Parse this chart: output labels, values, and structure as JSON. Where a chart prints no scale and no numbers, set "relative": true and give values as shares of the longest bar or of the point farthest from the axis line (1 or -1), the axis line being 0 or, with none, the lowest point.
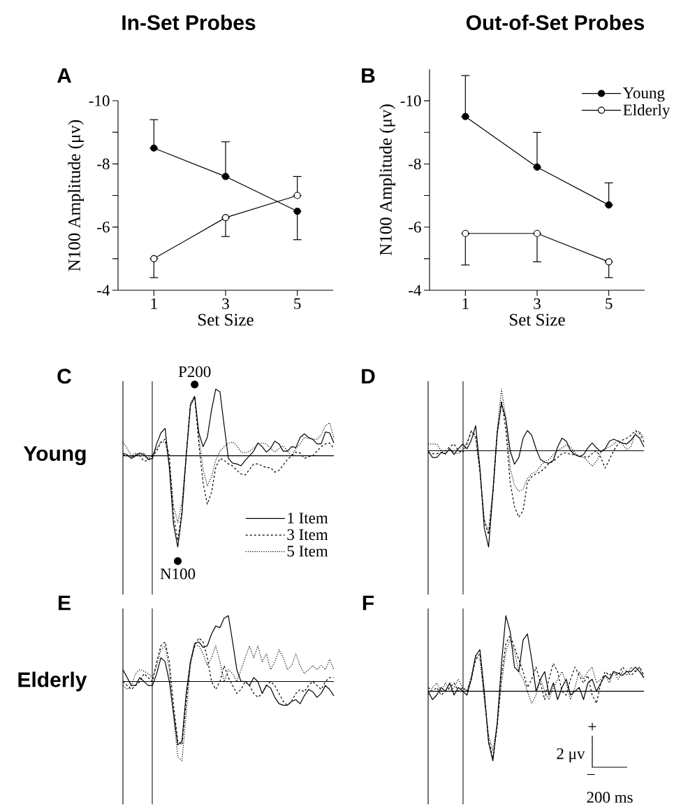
{
  "chart_data": [
    {
      "type": "line",
      "title": "In-Set Probes",
      "subtitle": "A",
      "xlabel": "Set Size",
      "ylabel": "N100 Amplitude (μv)",
      "x": [
        1,
        3,
        5
      ],
      "xlim": [
        0,
        6
      ],
      "xticks": [
        1,
        3,
        5
      ],
      "ylim": [
        -4,
        -10
      ],
      "yticks": [
        -4,
        {
          "value": -5,
          "label": null
        },
        -6,
        {
          "value": -7,
          "label": null
        },
        -8,
        {
          "value": -9,
          "label": null
        },
        -10
      ],
      "marker": "circle",
      "series": [
        {
          "color": "#000000",
          "values": [
            -8.5,
            -7.6,
            -6.5
          ],
          "errors": [
            [
              -9.4,
              -8.5
            ],
            [
              -8.7,
              -7.6
            ],
            [
              -6.5,
              -5.6
            ]
          ]
        },
        {
          "color": "#000000",
          "values": [
            -5.0,
            -6.3,
            -7.0
          ],
          "errors": [
            [
              -5.0,
              -4.4
            ],
            [
              -6.3,
              -5.7
            ],
            [
              -7.6,
              -7.0
            ]
          ]
        }
      ]
    },
    {
      "type": "line",
      "title": "Out-of-Set Probes",
      "subtitle": "B",
      "xlabel": "Set Size",
      "ylabel": "N100 Amplitude (μv)",
      "x": [
        1,
        3,
        5
      ],
      "xlim": [
        0,
        6
      ],
      "xticks": [
        1,
        3,
        5
      ],
      "ylim": [
        -4,
        -11
      ],
      "yticks": [
        -4,
        {
          "value": -5,
          "label": null
        },
        -6,
        {
          "value": -7,
          "label": null
        },
        -8,
        {
          "value": -9,
          "label": null
        },
        -10
      ],
      "marker": "circle",
      "legend": "top right",
      "series": [
        {
          "name": "Young",
          "color": "#000000",
          "values": [
            -9.5,
            -7.9,
            -6.7
          ],
          "errors": [
            [
              -10.8,
              -9.5
            ],
            [
              -9.0,
              -7.9
            ],
            [
              -7.4,
              -6.7
            ]
          ]
        },
        {
          "name": "Elderly",
          "color": "#000000",
          "values": [
            -5.8,
            -5.8,
            -4.9
          ],
          "errors": [
            [
              -5.8,
              -4.8
            ],
            [
              -5.8,
              -4.9
            ],
            [
              -4.9,
              -4.4
            ]
          ]
        }
      ]
    },
    {
      "type": "line",
      "title": "C",
      "ylabel": "Young",
      "relative": true,
      "legend": "bottom right",
      "annotations": [
        {
          "text": "P200",
          "y": 0.65
        },
        {
          "text": "N100",
          "y": -1
        }
      ],
      "categories": [
        null,
        null,
        null,
        null,
        null,
        null,
        null,
        null,
        null,
        null,
        null,
        null,
        null,
        null,
        null,
        null,
        null,
        null,
        null,
        null,
        null,
        null,
        null,
        null,
        null,
        null,
        null,
        null,
        null,
        null,
        null,
        null,
        null,
        null,
        null,
        null,
        null,
        null,
        null,
        null,
        null,
        null,
        null,
        null,
        null,
        null,
        null,
        null,
        null,
        null,
        null
      ],
      "series": [
        {
          "name": "1 Item",
          "color": "#000000",
          "line_style": "solid",
          "values": [
            0.03,
            0.01,
            -0.03,
            0,
            0.03,
            0.01,
            -0.04,
            -0.03,
            0.13,
            0.25,
            0.3,
            -0.13,
            -0.75,
            -1,
            -0.63,
            0,
            0.55,
            0.65,
            0.25,
            0.1,
            0.2,
            0.5,
            0.73,
            0.7,
            0.33,
            -0.03,
            -0.08,
            -0.09,
            -0.11,
            -0.05,
            0,
            0.05,
            0.14,
            0.1,
            0.04,
            0.08,
            0.16,
            0.13,
            0.05,
            0.05,
            0.1,
            0.09,
            0.2,
            0.24,
            0.2,
            0.18,
            0.13,
            0.13,
            0.26,
            0.25,
            0.14
          ]
        },
        {
          "name": "3 Item",
          "color": "#000000",
          "line_style": "dashed",
          "values": [
            0.01,
            0,
            -0.01,
            0.01,
            0,
            -0.06,
            -0.05,
            0,
            0.05,
            0.15,
            0.18,
            0,
            -0.65,
            -0.93,
            -0.6,
            0,
            0.55,
            0.65,
            0.13,
            -0.3,
            -0.53,
            -0.4,
            -0.13,
            -0.03,
            -0.05,
            -0.09,
            -0.11,
            -0.16,
            -0.2,
            -0.21,
            -0.15,
            -0.09,
            -0.09,
            -0.11,
            -0.13,
            -0.13,
            -0.18,
            -0.16,
            -0.1,
            -0.04,
            0,
            0.04,
            0.03,
            -0.03,
            -0.01,
            0,
            0.05,
            0.1,
            0.13,
            0.14,
            0.08
          ]
        },
        {
          "name": "5 Item",
          "color": "#000000",
          "line_style": "dotted",
          "values": [
            0.15,
            0.08,
            0,
            0.03,
            0.01,
            0.03,
            -0.03,
            0.01,
            0.08,
            0.15,
            0.15,
            -0.08,
            -0.55,
            -0.73,
            -0.5,
            0,
            0.58,
            0.65,
            0.2,
            -0.15,
            -0.33,
            -0.23,
            -0.05,
            0.05,
            0.1,
            0.14,
            0.15,
            0.11,
            0.04,
            0.03,
            0.05,
            0.08,
            0.13,
            0.14,
            0.13,
            0.08,
            0.04,
            0.08,
            0.11,
            0.05,
            0,
            0.08,
            0.13,
            0.2,
            0.19,
            0.18,
            0.18,
            0.23,
            0.33,
            0.36,
            0.2
          ]
        }
      ]
    },
    {
      "type": "line",
      "title": "D",
      "relative": true,
      "categories": [
        null,
        null,
        null,
        null,
        null,
        null,
        null,
        null,
        null,
        null,
        null,
        null,
        null,
        null,
        null,
        null,
        null,
        null,
        null,
        null,
        null,
        null,
        null,
        null,
        null,
        null,
        null,
        null,
        null,
        null,
        null,
        null,
        null,
        null,
        null,
        null,
        null,
        null,
        null,
        null,
        null,
        null,
        null,
        null,
        null,
        null,
        null,
        null,
        null,
        null,
        null
      ],
      "series": [
        {
          "color": "#000000",
          "line_style": "solid",
          "values": [
            0,
            -0.07,
            -0.07,
            -0.02,
            -0.03,
            0.02,
            -0.04,
            0.02,
            0.07,
            0.02,
            0.11,
            0.26,
            -0.18,
            -0.8,
            -1,
            -0.44,
            0.18,
            0.49,
            0.33,
            0,
            -0.14,
            -0.07,
            0.13,
            0.21,
            0.16,
            0.02,
            -0.09,
            -0.12,
            -0.13,
            -0.1,
            0.04,
            0.13,
            0.1,
            0,
            -0.04,
            -0.06,
            -0.04,
            0.03,
            0.08,
            0.03,
            -0.01,
            0.02,
            0.1,
            0.12,
            0.1,
            0.08,
            0.07,
            0.11,
            0.17,
            0.13,
            0.04
          ]
        },
        {
          "color": "#000000",
          "line_style": "dashed",
          "values": [
            -0.02,
            -0.03,
            -0.03,
            -0.02,
            0,
            0.04,
            0.07,
            0,
            -0.02,
            0.07,
            0.2,
            0.16,
            -0.22,
            -0.73,
            -0.87,
            -0.44,
            0.18,
            0.52,
            0.22,
            -0.33,
            -0.58,
            -0.69,
            -0.62,
            -0.33,
            -0.27,
            -0.24,
            -0.22,
            -0.18,
            -0.13,
            -0.11,
            -0.07,
            -0.03,
            -0.02,
            -0.04,
            -0.04,
            -0.06,
            -0.06,
            -0.07,
            -0.03,
            0,
            -0.07,
            -0.18,
            -0.09,
            0,
            0.07,
            0.11,
            0.13,
            0.16,
            0.21,
            0.18,
            0.09
          ]
        },
        {
          "color": "#000000",
          "line_style": "dotted",
          "values": [
            0.07,
            0.07,
            0.07,
            0,
            -0.04,
            0.02,
            -0.02,
            -0.03,
            0,
            0.09,
            0.21,
            0.13,
            -0.22,
            -0.71,
            -0.84,
            -0.4,
            0.22,
            0.64,
            0.33,
            -0.18,
            -0.36,
            -0.42,
            -0.4,
            -0.29,
            -0.24,
            -0.22,
            -0.16,
            -0.11,
            -0.09,
            -0.04,
            0,
            0.03,
            0.06,
            0.04,
            -0.02,
            -0.06,
            -0.07,
            -0.11,
            -0.16,
            -0.11,
            -0.02,
            0.02,
            0.04,
            0.07,
            0.11,
            0.07,
            0.01,
            0.04,
            0.19,
            0.2,
            0.13
          ]
        }
      ]
    },
    {
      "type": "line",
      "title": "E",
      "ylabel": "Elderly",
      "relative": true,
      "categories": [
        null,
        null,
        null,
        null,
        null,
        null,
        null,
        null,
        null,
        null,
        null,
        null,
        null,
        null,
        null,
        null,
        null,
        null,
        null,
        null,
        null,
        null,
        null,
        null,
        null,
        null,
        null,
        null,
        null,
        null,
        null,
        null,
        null,
        null,
        null,
        null,
        null,
        null,
        null,
        null,
        null,
        null,
        null,
        null,
        null,
        null,
        null,
        null,
        null,
        null,
        null
      ],
      "series": [
        {
          "color": "#000000",
          "line_style": "solid",
          "values": [
            0.15,
            0.05,
            -0.05,
            -0.05,
            0.05,
            0,
            -0.05,
            -0.05,
            0.1,
            0.3,
            0.25,
            0,
            -0.4,
            -0.8,
            -0.75,
            -0.15,
            0.25,
            0.48,
            0.5,
            0.43,
            0.45,
            0.6,
            0.7,
            0.68,
            0.8,
            0.83,
            0.5,
            0.15,
            0,
            0,
            -0.05,
            0.05,
            0,
            -0.15,
            -0.05,
            -0.08,
            -0.2,
            -0.28,
            -0.3,
            -0.3,
            -0.25,
            -0.23,
            -0.28,
            -0.18,
            -0.1,
            -0.13,
            -0.2,
            -0.15,
            -0.05,
            -0.1,
            -0.18
          ]
        },
        {
          "color": "#000000",
          "line_style": "dashed",
          "values": [
            0,
            -0.05,
            -0.1,
            -0.05,
            0,
            0.1,
            0.05,
            0,
            0.25,
            0.45,
            0.5,
            0.25,
            -0.3,
            -0.75,
            -0.8,
            -0.25,
            0.25,
            0.45,
            0.55,
            0.5,
            0.3,
            0,
            -0.1,
            0,
            0.2,
            0.05,
            -0.05,
            -0.15,
            -0.1,
            0,
            -0.05,
            -0.15,
            -0.2,
            -0.15,
            -0.05,
            0,
            -0.05,
            -0.15,
            -0.25,
            -0.3,
            -0.25,
            -0.15,
            -0.1,
            -0.13,
            -0.05,
            0,
            -0.05,
            -0.1,
            0,
            0.05,
            0.05
          ]
        },
        {
          "color": "#000000",
          "line_style": "dotted",
          "values": [
            -0.05,
            -0.1,
            -0.05,
            0.1,
            0.15,
            0.13,
            0.1,
            0.05,
            0.2,
            0.4,
            0.45,
            0.15,
            -0.45,
            -0.95,
            -1,
            -0.4,
            0.2,
            0.45,
            0.45,
            0.35,
            0.2,
            0.3,
            0.45,
            0.25,
            0,
            0.15,
            0.1,
            0,
            0.15,
            0.3,
            0.45,
            0.3,
            0.45,
            0.25,
            0.35,
            0.15,
            0.25,
            0.4,
            0.3,
            0.15,
            0.2,
            0.35,
            0.2,
            0.1,
            0.15,
            0.2,
            0.15,
            0.2,
            0.15,
            0.28,
            0.15
          ]
        }
      ]
    },
    {
      "type": "line",
      "title": "F",
      "relative": true,
      "annotations": [
        "+",
        "2 μv",
        "−",
        "200 ms"
      ],
      "categories": [
        null,
        null,
        null,
        null,
        null,
        null,
        null,
        null,
        null,
        null,
        null,
        null,
        null,
        null,
        null,
        null,
        null,
        null,
        null,
        null,
        null,
        null,
        null,
        null,
        null,
        null,
        null,
        null,
        null,
        null,
        null,
        null,
        null,
        null,
        null,
        null,
        null,
        null,
        null,
        null,
        null,
        null,
        null,
        null,
        null,
        null,
        null,
        null,
        null,
        null,
        null
      ],
      "series": [
        {
          "color": "#000000",
          "line_style": "solid",
          "values": [
            0,
            -0.11,
            -0.05,
            0.05,
            0,
            0.11,
            -0.05,
            0.05,
            0,
            -0.05,
            0.16,
            0.47,
            0.55,
            0,
            -0.68,
            -0.92,
            -0.42,
            0.37,
            1,
            0.79,
            0.32,
            0.26,
            0.68,
            0.76,
            0.42,
            0,
            0.16,
            0.26,
            -0.05,
            0.11,
            -0.11,
            0.05,
            0.16,
            -0.05,
            0,
            0.05,
            -0.11,
            0.11,
            0.16,
            0,
            0.11,
            0.21,
            0.16,
            0.26,
            0.24,
            0.21,
            0.26,
            0.26,
            0.32,
            0.26,
            0.18
          ]
        },
        {
          "color": "#000000",
          "line_style": "dashed",
          "values": [
            0.05,
            0,
            0.05,
            -0.05,
            0,
            0.05,
            0.11,
            0,
            0.05,
            0,
            0.16,
            0.42,
            0.5,
            -0.05,
            -0.63,
            -0.89,
            -0.47,
            0.21,
            0.63,
            0.74,
            0.58,
            0.42,
            0.26,
            0.05,
            0.16,
            0.32,
            0.11,
            -0.11,
            0.16,
            0.37,
            0.26,
            0,
            -0.05,
            0.16,
            0.32,
            0.21,
            0.11,
            0.21,
            -0.05,
            -0.16,
            0.11,
            0.26,
            0.21,
            0.26,
            0.21,
            0.32,
            0.26,
            0.21,
            0.26,
            0.32,
            0.21
          ]
        },
        {
          "color": "#000000",
          "line_style": "dotted",
          "values": [
            -0.05,
            0.05,
            0.11,
            0,
            0.11,
            0,
            0.05,
            0.16,
            0.05,
            0,
            0.21,
            0.47,
            0.42,
            -0.11,
            -0.58,
            -0.79,
            -0.42,
            0.11,
            0.53,
            0.68,
            0.53,
            0.26,
            0.16,
            0,
            -0.16,
            -0.05,
            0.16,
            0,
            -0.11,
            0.05,
            0.16,
            0.26,
            0.11,
            -0.11,
            0.05,
            0.26,
            0.16,
            0.26,
            0.32,
            0.11,
            0.16,
            0.21,
            0.11,
            0.26,
            0.16,
            0.26,
            0.21,
            0.32,
            0.26,
            0.32,
            0.16
          ]
        }
      ]
    }
  ]
}
